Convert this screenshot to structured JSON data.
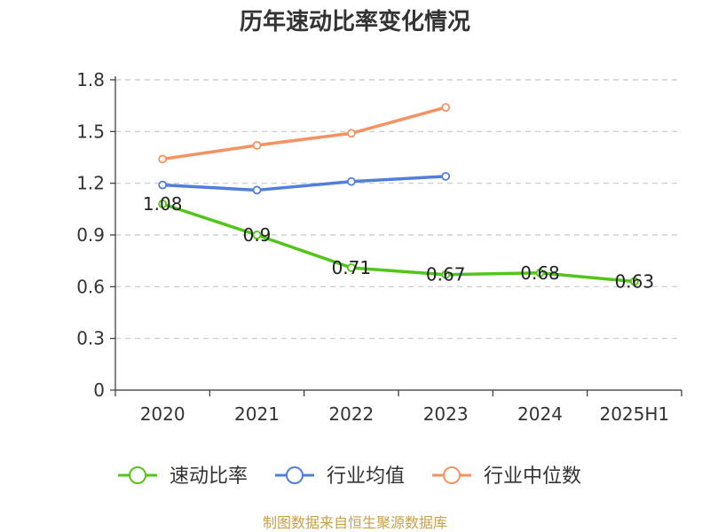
{
  "chart_data": {
    "type": "line",
    "title": "历年速动比率变化情况",
    "categories": [
      "2020",
      "2021",
      "2022",
      "2023",
      "2024",
      "2025H1"
    ],
    "ylim": [
      0,
      1.8
    ],
    "yticks": [
      "0",
      "0.3",
      "0.6",
      "0.9",
      "1.2",
      "1.5",
      "1.8"
    ],
    "grid": true,
    "legend_position": "bottom",
    "series": [
      {
        "name": "速动比率",
        "color": "#52c41a",
        "values": [
          1.08,
          0.9,
          0.71,
          0.67,
          0.68,
          0.63
        ],
        "labels": [
          "1.08",
          "0.9",
          "0.71",
          "0.67",
          "0.68",
          "0.63"
        ]
      },
      {
        "name": "行业均值",
        "color": "#4f7fdb",
        "values": [
          1.19,
          1.16,
          1.21,
          1.24,
          null,
          null
        ]
      },
      {
        "name": "行业中位数",
        "color": "#f59262",
        "values": [
          1.34,
          1.42,
          1.49,
          1.64,
          null,
          null
        ]
      }
    ]
  },
  "footer": {
    "source": "制图数据来自恒生聚源数据库"
  }
}
